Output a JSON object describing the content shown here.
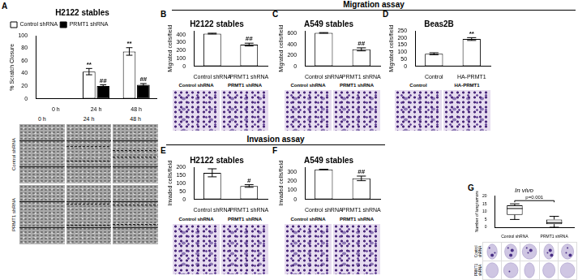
{
  "sections": [
    "Migration assay",
    "Invasion assay"
  ],
  "chart_data": [
    {
      "panel": "A",
      "type": "bar",
      "title": "H2122 stables",
      "y_label": "% Scratch Closure",
      "categories": [
        "0 h",
        "24 h",
        "48 h"
      ],
      "series": [
        {
          "name": "Control shRNA",
          "color": "#ffffff",
          "values": [
            0,
            43,
            75
          ],
          "error": [
            0,
            5,
            6
          ],
          "annotations": [
            null,
            "**",
            "**"
          ]
        },
        {
          "name": "PRMT1 shRNA",
          "color": "#000000",
          "values": [
            0,
            20,
            22
          ],
          "error": [
            0,
            2,
            2
          ],
          "annotations": [
            null,
            "##",
            "##"
          ]
        }
      ],
      "ylim": [
        0,
        100
      ],
      "yticks": [
        0,
        20,
        40,
        60,
        80,
        100
      ],
      "grid": false,
      "legend": "upper left"
    },
    {
      "panel": "B",
      "type": "bar",
      "title": "H2122 stables",
      "y_label": "Migrated cells/field",
      "categories": [
        "Control shRNA",
        "PRMT1 shRNA"
      ],
      "values": [
        415,
        275
      ],
      "error": [
        5,
        18
      ],
      "annotations": [
        null,
        "##"
      ],
      "color": "#ffffff",
      "ylim": [
        0,
        450
      ],
      "yticks": [
        0,
        100,
        200,
        300,
        400
      ],
      "grid": false
    },
    {
      "panel": "C",
      "type": "bar",
      "title": "A549 stables",
      "y_label": "Migrated cells/field",
      "categories": [
        "Control shRNA",
        "PRMT1 shRNA"
      ],
      "values": [
        612,
        310
      ],
      "error": [
        6,
        28
      ],
      "annotations": [
        null,
        "##"
      ],
      "color": "#ffffff",
      "ylim": [
        0,
        650
      ],
      "yticks": [
        0,
        200,
        400,
        600
      ],
      "grid": false
    },
    {
      "panel": "D",
      "type": "bar",
      "title": "Beas2B",
      "y_label": "Migrated cells/field",
      "categories": [
        "Control",
        "HA-PRMT1"
      ],
      "values": [
        88,
        192
      ],
      "error": [
        7,
        10
      ],
      "annotations": [
        null,
        "**"
      ],
      "color": "#ffffff",
      "ylim": [
        0,
        250
      ],
      "yticks": [
        0,
        50,
        100,
        150,
        200,
        250
      ],
      "grid": false
    },
    {
      "panel": "E",
      "type": "bar",
      "title": "H2122 stables",
      "y_label": "Invaded cells/field",
      "categories": [
        "Control shRNA",
        "PRMT1 shRNA"
      ],
      "values": [
        165,
        83
      ],
      "error": [
        25,
        8
      ],
      "annotations": [
        null,
        "#"
      ],
      "color": "#ffffff",
      "ylim": [
        0,
        200
      ],
      "yticks": [
        0,
        50,
        100,
        150,
        200
      ],
      "grid": false
    },
    {
      "panel": "F",
      "type": "bar",
      "title": "A549 stables",
      "y_label": "Invaded cells/field",
      "categories": [
        "Control shRNA",
        "PRMT1 shRNA"
      ],
      "values": [
        325,
        228
      ],
      "error": [
        3,
        25
      ],
      "annotations": [
        null,
        "##"
      ],
      "color": "#ffffff",
      "ylim": [
        0,
        350
      ],
      "yticks": [
        0,
        100,
        200,
        300
      ],
      "grid": false
    },
    {
      "panel": "G",
      "type": "box",
      "title": "In vivo",
      "y_label": "Number of lung tumors",
      "categories": [
        "Control shRNA",
        "PRMT1 shRNA"
      ],
      "boxes": [
        {
          "min": 5,
          "q1": 8,
          "median": 12,
          "q3": 14,
          "max": 15
        },
        {
          "min": 0,
          "q1": 2,
          "median": 3,
          "q3": 5,
          "max": 7
        }
      ],
      "annotations": [
        "p=0.001"
      ],
      "color": "#ffffff",
      "ylim": [
        0,
        20
      ],
      "yticks": [
        0,
        5,
        10,
        15,
        20
      ],
      "grid": false
    }
  ],
  "images": [
    {
      "panel": "A",
      "columns": [
        "0 h",
        "24 h",
        "48 h"
      ],
      "rows": [
        "Control shRNA",
        "PRMT1 shRNA"
      ]
    },
    {
      "panel": "B",
      "labels": [
        "Control shRNA",
        "PRMT1 shRNA"
      ]
    },
    {
      "panel": "C",
      "labels": [
        "Control shRNA",
        "PRMT1 shRNA"
      ]
    },
    {
      "panel": "D",
      "labels": [
        "Control",
        "HA-PRMT1"
      ]
    },
    {
      "panel": "E",
      "labels": [
        "Control shRNA",
        "PRMT1 shRNA"
      ]
    },
    {
      "panel": "F",
      "labels": [
        "Control shRNA",
        "PRMT1 shRNA"
      ]
    },
    {
      "panel": "G",
      "rows": [
        "Control shRNA",
        "PRMT1 shRNA"
      ]
    }
  ]
}
